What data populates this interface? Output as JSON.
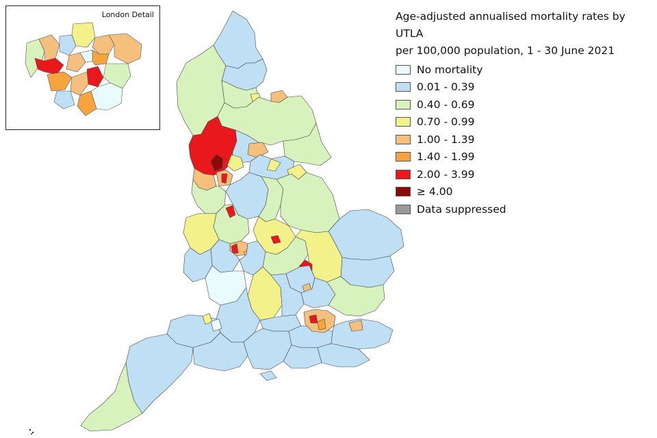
{
  "title_line1": "Age-adjusted annualised mortality rates by UTLA",
  "title_line2": "per 100,000 population, 1 - 30 June 2021",
  "inset_label": "London Detail",
  "legend": [
    {
      "label": "No mortality",
      "color": "#eafbfd"
    },
    {
      "label": "0.01 - 0.39",
      "color": "#bfdff5"
    },
    {
      "label": "0.40 - 0.69",
      "color": "#d8f2bd"
    },
    {
      "label": "0.70 - 0.99",
      "color": "#f3f28a"
    },
    {
      "label": "1.00 - 1.39",
      "color": "#f5c07e"
    },
    {
      "label": "1.40 - 1.99",
      "color": "#f7a33e"
    },
    {
      "label": "2.00 - 3.99",
      "color": "#e8181c"
    },
    {
      "label": "≥ 4.00",
      "color": "#8b0a0a"
    },
    {
      "label": "Data suppressed",
      "color": "#999999"
    }
  ]
}
